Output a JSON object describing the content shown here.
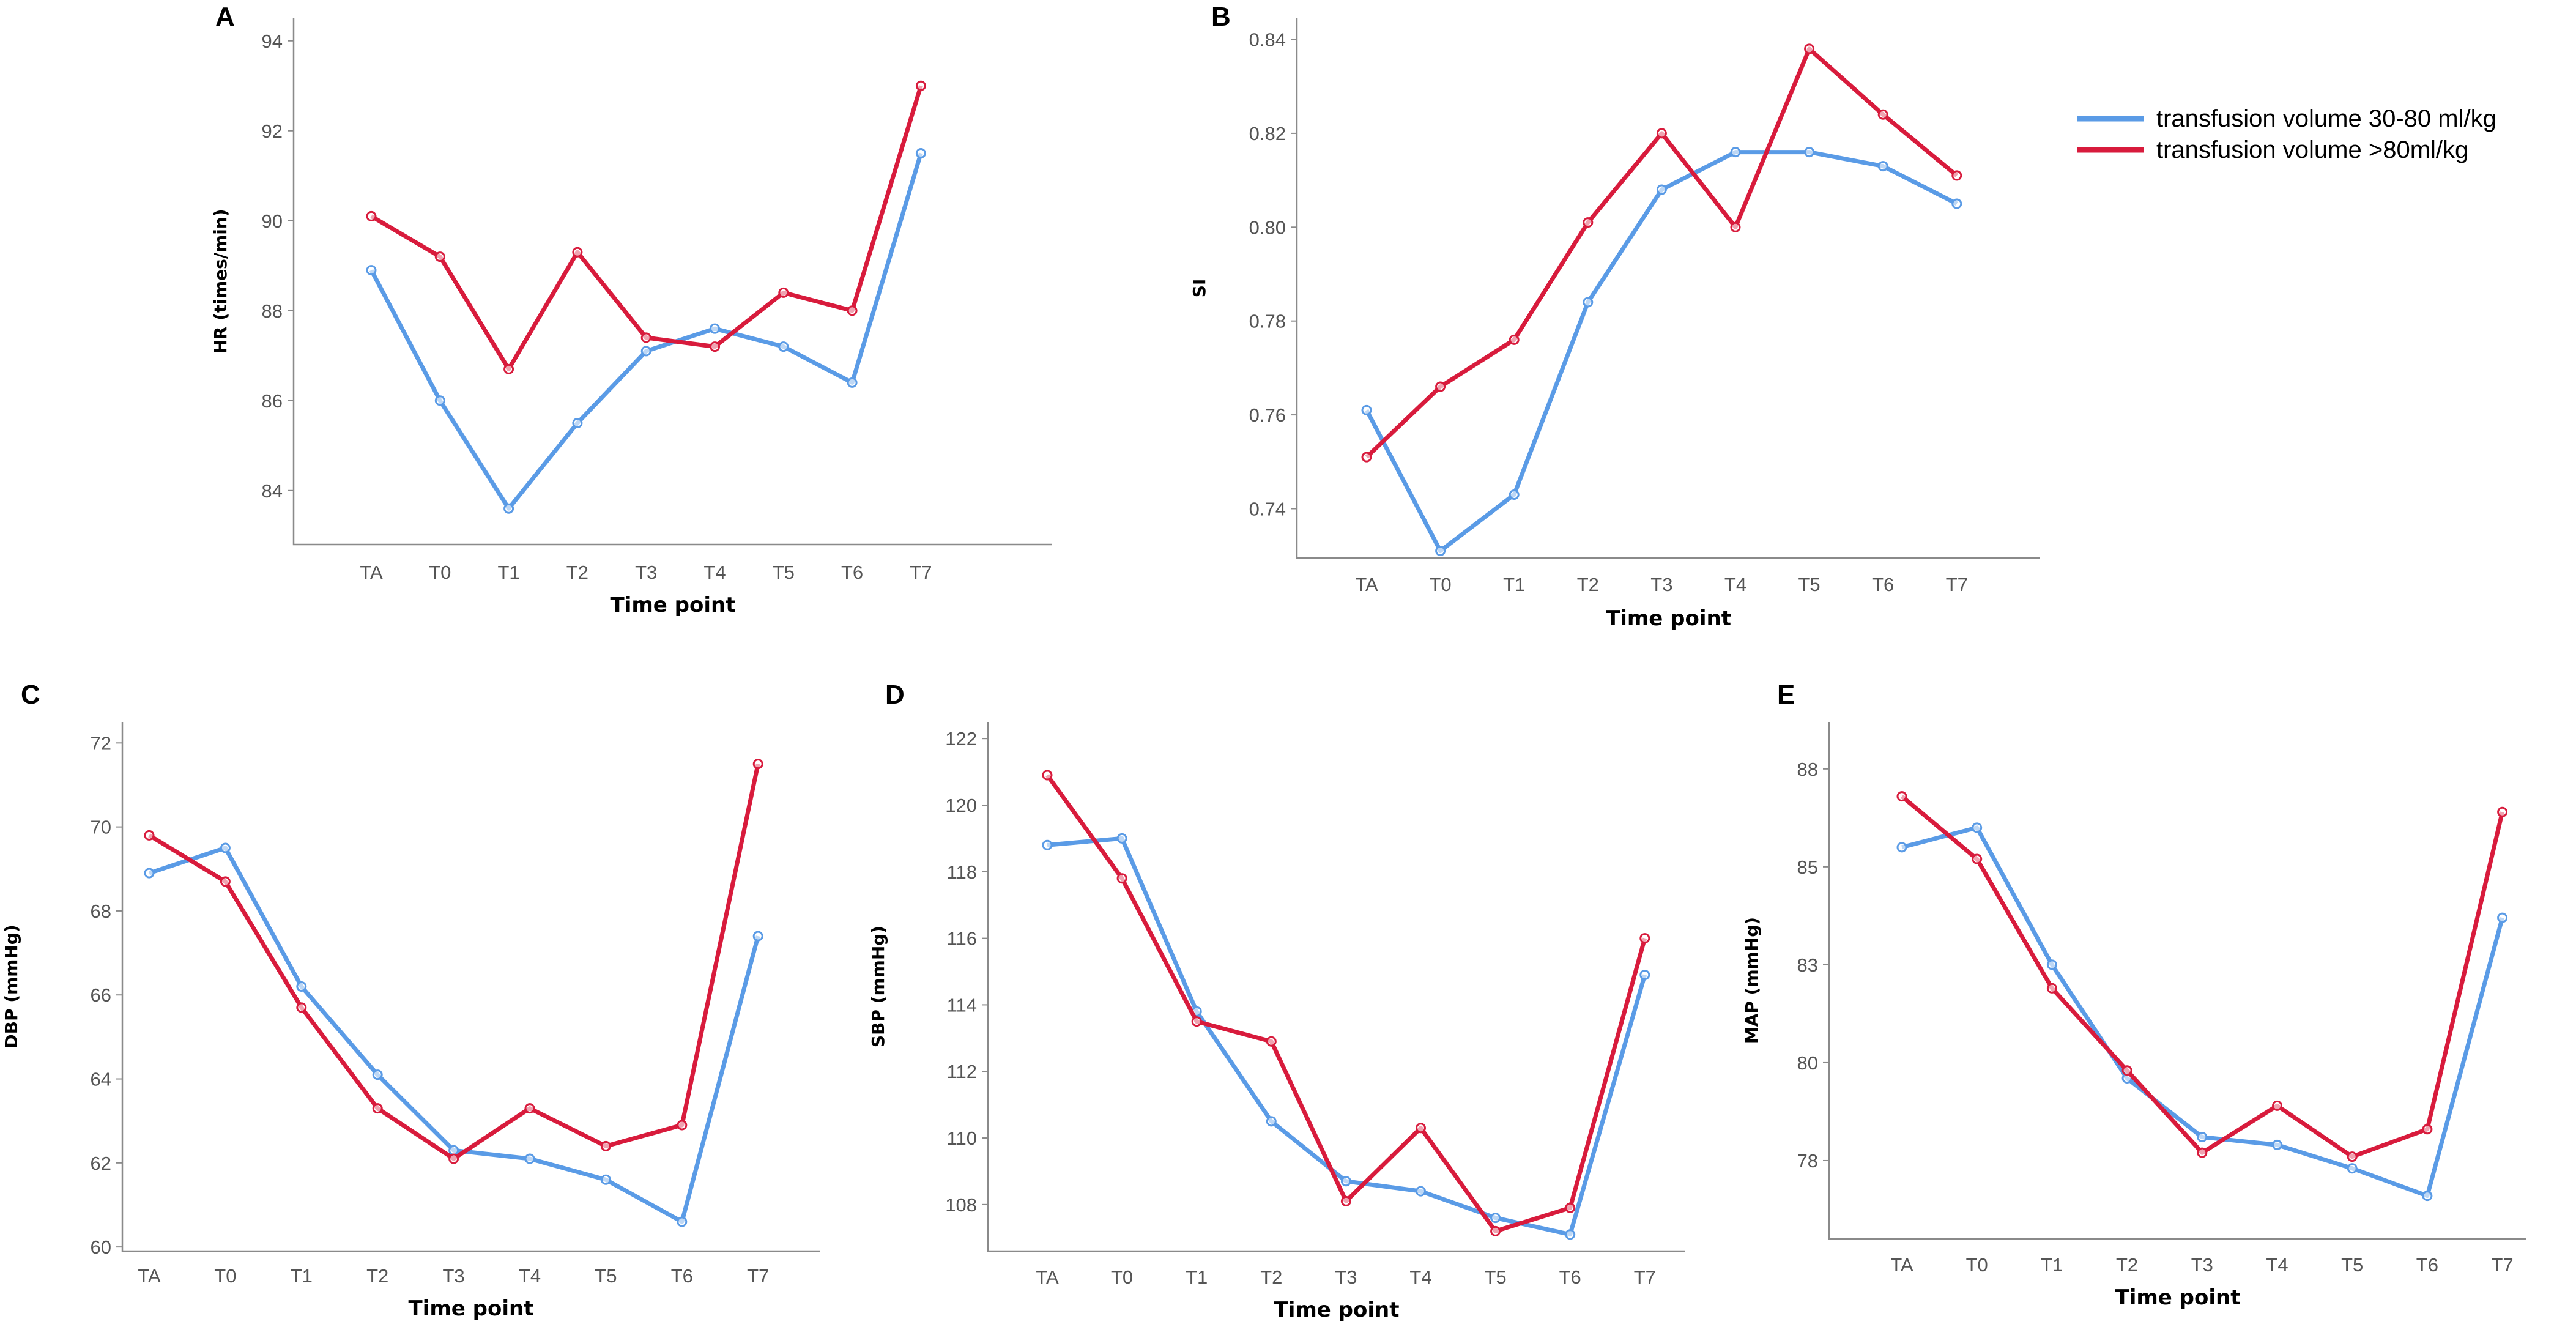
{
  "colors": {
    "series1": "#5a9be6",
    "series2": "#d81b3c"
  },
  "legend": {
    "placement": "top-right",
    "items": [
      {
        "label": "transfusion volume 30-80 ml/kg",
        "color": "#5a9be6"
      },
      {
        "label": "transfusion volume >80ml/kg",
        "color": "#d81b3c"
      }
    ]
  },
  "chart_data": [
    {
      "panel": "A",
      "type": "line",
      "xlabel": "Time point",
      "ylabel": "HR (times/min)",
      "categories": [
        "TA",
        "T0",
        "T1",
        "T2",
        "T3",
        "T4",
        "T5",
        "T6",
        "T7"
      ],
      "ylim": [
        82.8,
        94.5
      ],
      "yticks": [
        "84",
        "86",
        "88",
        "90",
        "92",
        "94"
      ],
      "series": [
        {
          "name": "transfusion volume 30-80 ml/kg",
          "values": [
            88.9,
            86.0,
            83.6,
            85.5,
            87.1,
            87.6,
            87.2,
            86.4,
            91.5
          ]
        },
        {
          "name": "transfusion volume >80ml/kg",
          "values": [
            90.1,
            89.2,
            86.7,
            89.3,
            87.4,
            87.2,
            88.4,
            88.0,
            93.0
          ]
        }
      ]
    },
    {
      "panel": "B",
      "type": "line",
      "xlabel": "Time point",
      "ylabel": "SI",
      "categories": [
        "TA",
        "T0",
        "T1",
        "T2",
        "T3",
        "T4",
        "T5",
        "T6",
        "T7"
      ],
      "ylim": [
        0.7295,
        0.8445
      ],
      "yticks": [
        "0.74",
        "0.76",
        "0.78",
        "0.80",
        "0.82",
        "0.84"
      ],
      "series": [
        {
          "name": "transfusion volume 30-80 ml/kg",
          "values": [
            0.761,
            0.731,
            0.743,
            0.784,
            0.808,
            0.816,
            0.816,
            0.813,
            0.805
          ]
        },
        {
          "name": "transfusion volume >80ml/kg",
          "values": [
            0.751,
            0.766,
            0.776,
            0.801,
            0.82,
            0.8,
            0.838,
            0.824,
            0.811
          ]
        }
      ]
    },
    {
      "panel": "C",
      "type": "line",
      "xlabel": "Time point",
      "ylabel": "DBP (mmHg)",
      "categories": [
        "TA",
        "T0",
        "T1",
        "T2",
        "T3",
        "T4",
        "T5",
        "T6",
        "T7"
      ],
      "ylim": [
        59.9,
        72.5
      ],
      "yticks": [
        "60",
        "62",
        "64",
        "66",
        "68",
        "70",
        "72"
      ],
      "series": [
        {
          "name": "transfusion volume 30-80 ml/kg",
          "values": [
            68.9,
            69.5,
            66.2,
            64.1,
            62.3,
            62.1,
            61.6,
            60.6,
            67.4
          ]
        },
        {
          "name": "transfusion volume >80ml/kg",
          "values": [
            69.8,
            68.7,
            65.7,
            63.3,
            62.1,
            63.3,
            62.4,
            62.9,
            71.5
          ]
        }
      ]
    },
    {
      "panel": "D",
      "type": "line",
      "xlabel": "Time point",
      "ylabel": "SBP (mmHg)",
      "categories": [
        "TA",
        "T0",
        "T1",
        "T2",
        "T3",
        "T4",
        "T5",
        "T6",
        "T7"
      ],
      "ylim": [
        106.6,
        122.5
      ],
      "yticks": [
        "108",
        "110",
        "112",
        "114",
        "116",
        "118",
        "120",
        "122"
      ],
      "series": [
        {
          "name": "transfusion volume 30-80 ml/kg",
          "values": [
            118.8,
            119.0,
            113.8,
            110.5,
            108.7,
            108.4,
            107.6,
            107.1,
            114.9
          ]
        },
        {
          "name": "transfusion volume >80ml/kg",
          "values": [
            120.9,
            117.8,
            113.5,
            112.9,
            108.1,
            110.3,
            107.2,
            107.9,
            116.0
          ]
        }
      ]
    },
    {
      "panel": "E",
      "type": "line",
      "xlabel": "Time point",
      "ylabel": "MAP (mmHg)",
      "categories": [
        "TA",
        "T0",
        "T1",
        "T2",
        "T3",
        "T4",
        "T5",
        "T6",
        "T7"
      ],
      "ylim": [
        75.5,
        88.7
      ],
      "yticks": [
        "78",
        "80",
        "83",
        "85",
        "88"
      ],
      "ytick_values": [
        77.5,
        80.0,
        82.5,
        85.0,
        87.5
      ],
      "series": [
        {
          "name": "transfusion volume 30-80 ml/kg",
          "values": [
            85.5,
            86.0,
            82.5,
            79.6,
            78.1,
            77.9,
            77.3,
            76.6,
            83.7
          ]
        },
        {
          "name": "transfusion volume >80ml/kg",
          "values": [
            86.8,
            85.2,
            81.9,
            79.8,
            77.7,
            78.9,
            77.6,
            78.3,
            86.4
          ]
        }
      ]
    }
  ]
}
